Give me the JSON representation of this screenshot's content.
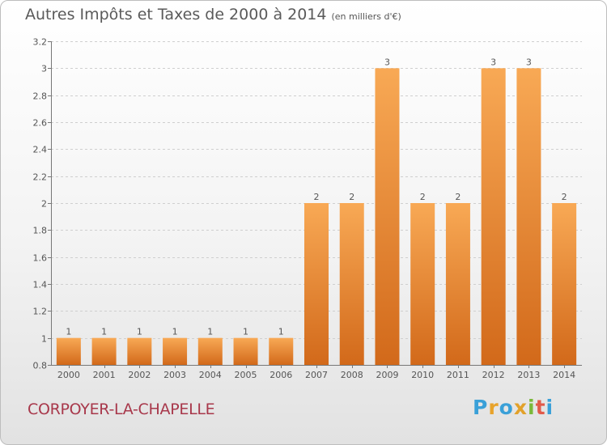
{
  "header": {
    "title": "Autres Impôts et Taxes de 2000 à 2014",
    "subtitle": "(en milliers d'€)"
  },
  "footer": {
    "commune": "CORPOYER-LA-CHAPELLE",
    "logo_letters": [
      "P",
      "r",
      "o",
      "x",
      "i",
      "t",
      "i"
    ],
    "logo_colors": [
      "#3aa0d8",
      "#e8a32b",
      "#3aa0d8",
      "#e2a12a",
      "#7bb83a",
      "#e25a4a",
      "#3aa0d8"
    ]
  },
  "chart_data": {
    "type": "bar",
    "title": "Autres Impôts et Taxes de 2000 à 2014",
    "subtitle": "(en milliers d'€)",
    "categories": [
      "2000",
      "2001",
      "2002",
      "2003",
      "2004",
      "2005",
      "2006",
      "2007",
      "2008",
      "2009",
      "2010",
      "2011",
      "2012",
      "2013",
      "2014"
    ],
    "values": [
      1,
      1,
      1,
      1,
      1,
      1,
      1,
      2,
      2,
      3,
      2,
      2,
      3,
      3,
      2
    ],
    "data_labels": [
      "1",
      "1",
      "1",
      "1",
      "1",
      "1",
      "1",
      "2",
      "2",
      "3",
      "2",
      "2",
      "3",
      "3",
      "2"
    ],
    "ylim": [
      0.8,
      3.2
    ],
    "yticks": [
      0.8,
      1,
      1.2,
      1.4,
      1.6,
      1.8,
      2,
      2.2,
      2.4,
      2.6,
      2.8,
      3,
      3.2
    ],
    "ytick_labels": [
      "0.8",
      "1",
      "1.2",
      "1.4",
      "1.6",
      "1.8",
      "2",
      "2.2",
      "2.4",
      "2.6",
      "2.8",
      "3",
      "3.2"
    ],
    "grid": true,
    "colors": {
      "bar_light": "#f8a955",
      "bar_dark": "#d2691a",
      "grid": "#cfcfcf",
      "axis": "#777777",
      "text": "#555555"
    }
  }
}
